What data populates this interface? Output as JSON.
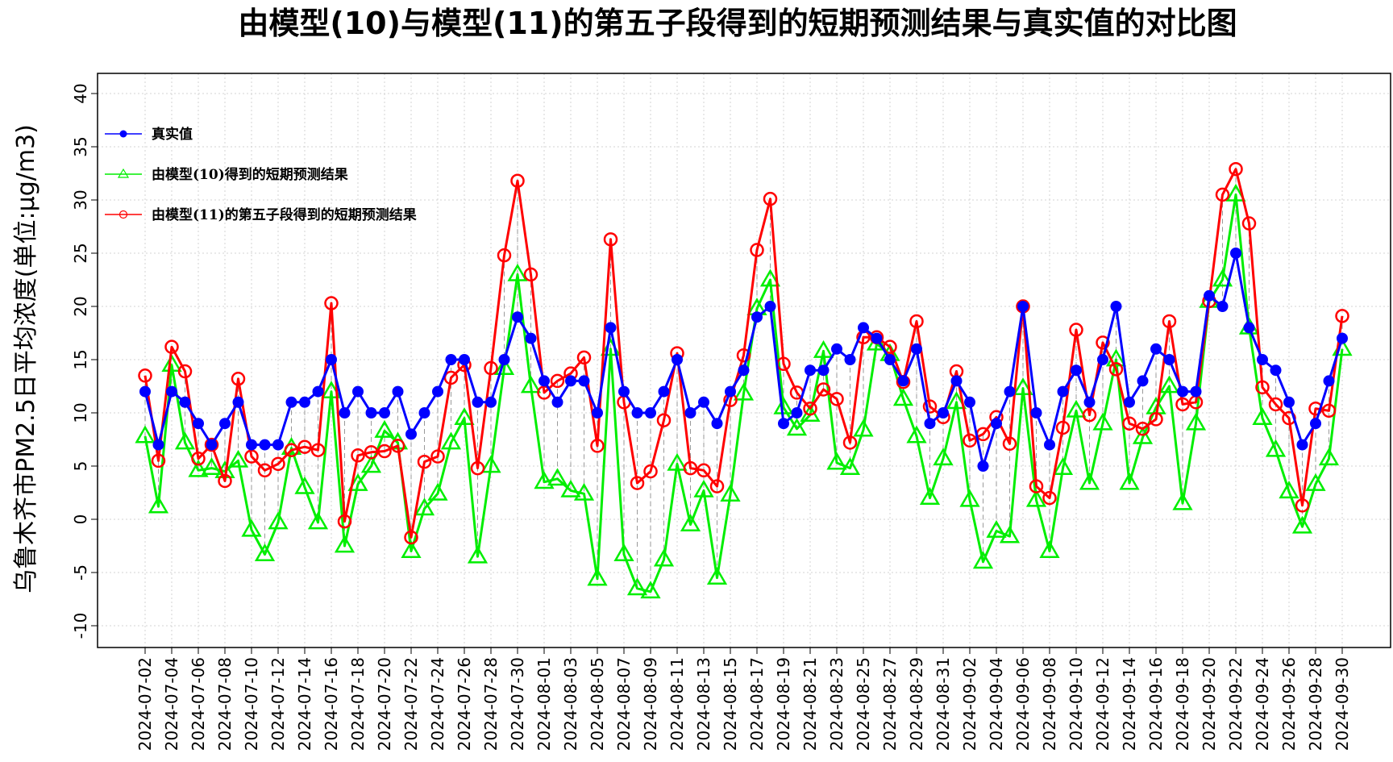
{
  "chart_data": {
    "type": "line",
    "title": "由模型(10)与模型(11)的第五子段得到的短期预测结果与真实值的对比图",
    "xlabel": "",
    "ylabel": "乌鲁木齐市PM2.5日平均浓度(单位:μg/m3)",
    "ylim": [
      -10,
      40
    ],
    "yticks": [
      -10,
      -5,
      0,
      5,
      10,
      15,
      20,
      25,
      30,
      35,
      40
    ],
    "grid": true,
    "legend_position": "top-left",
    "x": [
      "2024-07-02",
      "2024-07-03",
      "2024-07-04",
      "2024-07-05",
      "2024-07-06",
      "2024-07-07",
      "2024-07-08",
      "2024-07-09",
      "2024-07-10",
      "2024-07-11",
      "2024-07-12",
      "2024-07-13",
      "2024-07-14",
      "2024-07-15",
      "2024-07-16",
      "2024-07-17",
      "2024-07-18",
      "2024-07-19",
      "2024-07-20",
      "2024-07-21",
      "2024-07-22",
      "2024-07-23",
      "2024-07-24",
      "2024-07-25",
      "2024-07-26",
      "2024-07-27",
      "2024-07-28",
      "2024-07-29",
      "2024-07-30",
      "2024-07-31",
      "2024-08-01",
      "2024-08-02",
      "2024-08-03",
      "2024-08-04",
      "2024-08-05",
      "2024-08-06",
      "2024-08-07",
      "2024-08-08",
      "2024-08-09",
      "2024-08-10",
      "2024-08-11",
      "2024-08-12",
      "2024-08-13",
      "2024-08-14",
      "2024-08-15",
      "2024-08-16",
      "2024-08-17",
      "2024-08-18",
      "2024-08-19",
      "2024-08-20",
      "2024-08-21",
      "2024-08-22",
      "2024-08-23",
      "2024-08-24",
      "2024-08-25",
      "2024-08-26",
      "2024-08-27",
      "2024-08-28",
      "2024-08-29",
      "2024-08-30",
      "2024-08-31",
      "2024-09-01",
      "2024-09-02",
      "2024-09-03",
      "2024-09-04",
      "2024-09-05",
      "2024-09-06",
      "2024-09-07",
      "2024-09-08",
      "2024-09-09",
      "2024-09-10",
      "2024-09-11",
      "2024-09-12",
      "2024-09-13",
      "2024-09-14",
      "2024-09-15",
      "2024-09-16",
      "2024-09-17",
      "2024-09-18",
      "2024-09-19",
      "2024-09-20",
      "2024-09-21",
      "2024-09-22",
      "2024-09-23",
      "2024-09-24",
      "2024-09-25",
      "2024-09-26",
      "2024-09-27",
      "2024-09-28",
      "2024-09-29",
      "2024-09-30"
    ],
    "xtick_labels": [
      "2024-07-02",
      "2024-07-04",
      "2024-07-06",
      "2024-07-08",
      "2024-07-10",
      "2024-07-12",
      "2024-07-14",
      "2024-07-16",
      "2024-07-18",
      "2024-07-20",
      "2024-07-22",
      "2024-07-24",
      "2024-07-26",
      "2024-07-28",
      "2024-07-30",
      "2024-08-01",
      "2024-08-03",
      "2024-08-05",
      "2024-08-07",
      "2024-08-09",
      "2024-08-11",
      "2024-08-13",
      "2024-08-15",
      "2024-08-17",
      "2024-08-19",
      "2024-08-21",
      "2024-08-23",
      "2024-08-25",
      "2024-08-27",
      "2024-08-29",
      "2024-08-31",
      "2024-09-02",
      "2024-09-04",
      "2024-09-06",
      "2024-09-08",
      "2024-09-10",
      "2024-09-12",
      "2024-09-14",
      "2024-09-16",
      "2024-09-18",
      "2024-09-20",
      "2024-09-22",
      "2024-09-24",
      "2024-09-26",
      "2024-09-28",
      "2024-09-30"
    ],
    "series": [
      {
        "name": "真实值",
        "color": "#0000ff",
        "marker": "filled-circle",
        "values": [
          12,
          7,
          12,
          11,
          9,
          7,
          9,
          11,
          7,
          7,
          7,
          11,
          11,
          12,
          15,
          10,
          12,
          10,
          10,
          12,
          8,
          10,
          12,
          15,
          15,
          11,
          11,
          15,
          19,
          17,
          13,
          11,
          13,
          13,
          10,
          18,
          12,
          10,
          10,
          12,
          15,
          10,
          11,
          9,
          12,
          14,
          19,
          20,
          9,
          10,
          14,
          14,
          16,
          15,
          18,
          17,
          15,
          13,
          16,
          9,
          10,
          13,
          11,
          5,
          9,
          12,
          20,
          10,
          7,
          12,
          14,
          11,
          15,
          20,
          11,
          13,
          16,
          15,
          12,
          12,
          21,
          20,
          25,
          18,
          15,
          14,
          11,
          7,
          9,
          13,
          17
        ]
      },
      {
        "name": "由模型(10)得到的短期预测结果",
        "color": "#00ee00",
        "marker": "open-triangle",
        "values": [
          7.8,
          1.2,
          14.5,
          7.2,
          4.6,
          4.8,
          4.5,
          5.5,
          -1,
          -3.3,
          -0.3,
          6.7,
          3.0,
          -0.3,
          12,
          -2.5,
          3.3,
          5,
          8.3,
          7.2,
          -3,
          1,
          2.4,
          7.2,
          9.5,
          -3.5,
          5,
          14.2,
          23,
          12.5,
          3.5,
          3.8,
          2.7,
          2.4,
          -5.6,
          16,
          -3.3,
          -6.5,
          -6.8,
          -3.8,
          5.2,
          -0.5,
          2.7,
          -5.5,
          2.3,
          11.8,
          19.8,
          22.5,
          10.5,
          8.5,
          9.8,
          15.8,
          5.3,
          4.8,
          8.4,
          16.5,
          15.5,
          11.3,
          7.8,
          2,
          5.7,
          11,
          1.8,
          -4,
          -1.1,
          -1.6,
          12.3,
          1.8,
          -3,
          4.8,
          10.2,
          3.4,
          9,
          15,
          3.4,
          7.7,
          10.5,
          12.5,
          1.5,
          9,
          20.5,
          22.5,
          30.5,
          18,
          9.5,
          6.5,
          2.6,
          -0.7,
          3.3,
          5.7,
          16
        ]
      },
      {
        "name": "由模型(11)的第五子段得到的短期预测结果",
        "color": "#ff0000",
        "marker": "open-circle",
        "values": [
          13.5,
          5.5,
          16.2,
          13.9,
          5.7,
          7,
          3.6,
          13.2,
          5.9,
          4.6,
          5.2,
          6.5,
          6.8,
          6.5,
          20.3,
          -0.2,
          6,
          6.3,
          6.4,
          6.9,
          -1.7,
          5.4,
          5.9,
          13.3,
          14.5,
          4.8,
          14.2,
          24.8,
          31.8,
          23,
          11.9,
          13,
          13.7,
          15.2,
          6.9,
          26.3,
          11,
          3.4,
          4.5,
          9.3,
          15.6,
          4.8,
          4.6,
          3.1,
          11.2,
          15.4,
          25.3,
          30.1,
          14.6,
          11.9,
          10.4,
          12.2,
          11.3,
          7.2,
          17.1,
          17.1,
          16.2,
          12.9,
          18.6,
          10.6,
          9.6,
          13.9,
          7.4,
          8,
          9.6,
          7.1,
          20,
          3.1,
          2,
          8.6,
          17.8,
          9.8,
          16.6,
          14.1,
          9,
          8.5,
          9.4,
          18.6,
          10.8,
          11,
          20.5,
          30.5,
          32.9,
          27.8,
          12.4,
          10.8,
          9.5,
          1.3,
          10.4,
          10.2,
          19.1
        ]
      }
    ]
  }
}
